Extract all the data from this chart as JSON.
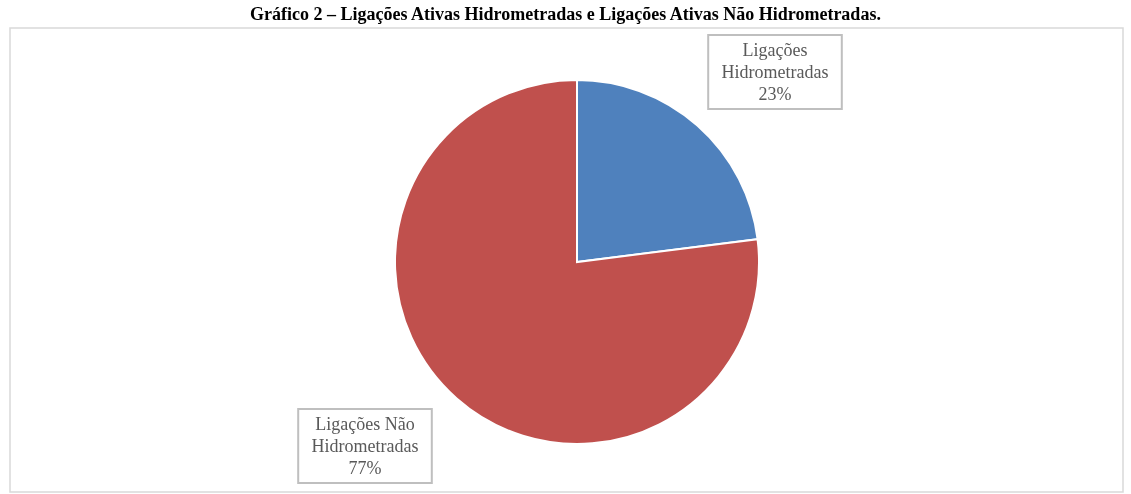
{
  "chart_data": {
    "type": "pie",
    "title": "Gráfico 2 – Ligações Ativas Hidrometradas e Ligações Ativas Não Hidrometradas.",
    "categories": [
      "Ligações Hidrometradas",
      "Ligações Não Hidrometradas"
    ],
    "values": [
      23,
      77
    ],
    "colors": [
      "#4f81bd",
      "#c0504d"
    ],
    "value_labels": [
      "23%",
      "77%"
    ]
  }
}
